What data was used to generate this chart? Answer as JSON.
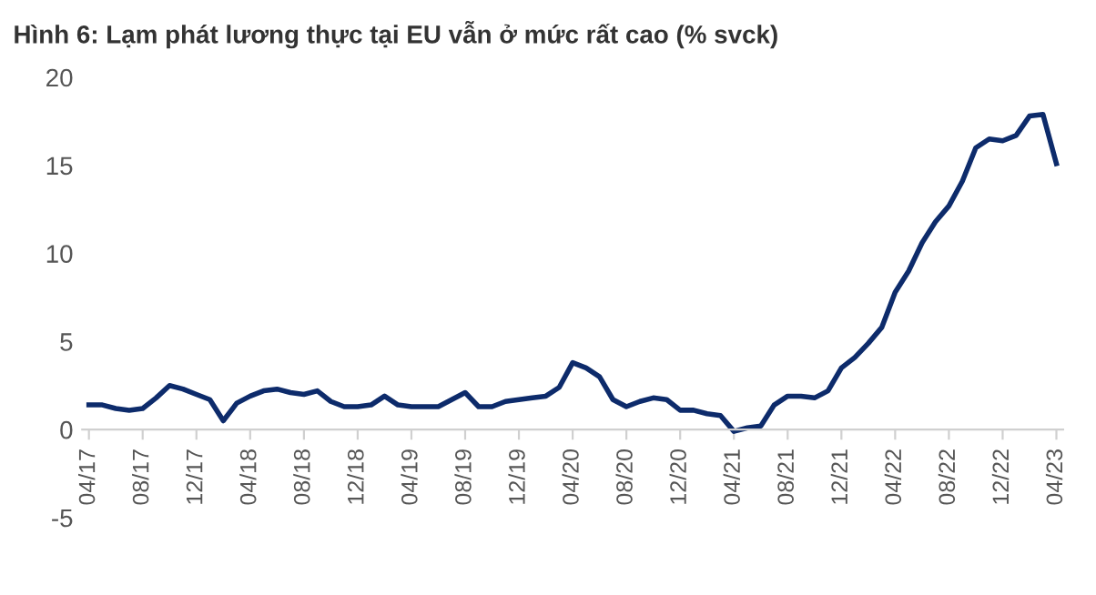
{
  "chart_data": {
    "type": "line",
    "title": "Hình 6: Lạm phát lương thực tại EU vẫn ở mức rất cao (% svck)",
    "categories": [
      "04/17",
      null,
      null,
      null,
      "08/17",
      null,
      null,
      null,
      "12/17",
      null,
      null,
      null,
      "04/18",
      null,
      null,
      null,
      "08/18",
      null,
      null,
      null,
      "12/18",
      null,
      null,
      null,
      "04/19",
      null,
      null,
      null,
      "08/19",
      null,
      null,
      null,
      "12/19",
      null,
      null,
      null,
      "04/20",
      null,
      null,
      null,
      "08/20",
      null,
      null,
      null,
      "12/20",
      null,
      null,
      null,
      "04/21",
      null,
      null,
      null,
      "08/21",
      null,
      null,
      null,
      "12/21",
      null,
      null,
      null,
      "04/22",
      null,
      null,
      null,
      "08/22",
      null,
      null,
      null,
      "12/22",
      null,
      null,
      null,
      "04/23"
    ],
    "series": [
      {
        "color": "#0d2b6b",
        "values": [
          1.4,
          1.4,
          1.2,
          1.1,
          1.2,
          1.8,
          2.5,
          2.3,
          2.0,
          1.7,
          0.5,
          1.5,
          1.9,
          2.2,
          2.3,
          2.1,
          2.0,
          2.2,
          1.6,
          1.3,
          1.3,
          1.4,
          1.9,
          1.4,
          1.3,
          1.3,
          1.3,
          1.7,
          2.1,
          1.3,
          1.3,
          1.6,
          1.7,
          1.8,
          1.9,
          2.4,
          3.8,
          3.5,
          3.0,
          1.7,
          1.3,
          1.6,
          1.8,
          1.7,
          1.1,
          1.1,
          0.9,
          0.8,
          -0.1,
          0.1,
          0.2,
          1.4,
          1.9,
          1.9,
          1.8,
          2.2,
          3.5,
          4.1,
          4.9,
          5.8,
          7.8,
          9.0,
          10.6,
          11.8,
          12.7,
          14.1,
          16.0,
          16.5,
          16.4,
          16.7,
          17.8,
          17.9,
          15.1
        ]
      }
    ],
    "ylim": [
      -5,
      20
    ],
    "yticks": [
      -5,
      0,
      5,
      10,
      15,
      20
    ],
    "grid": false,
    "legend": false,
    "marker": "none",
    "line_style": "solid"
  }
}
